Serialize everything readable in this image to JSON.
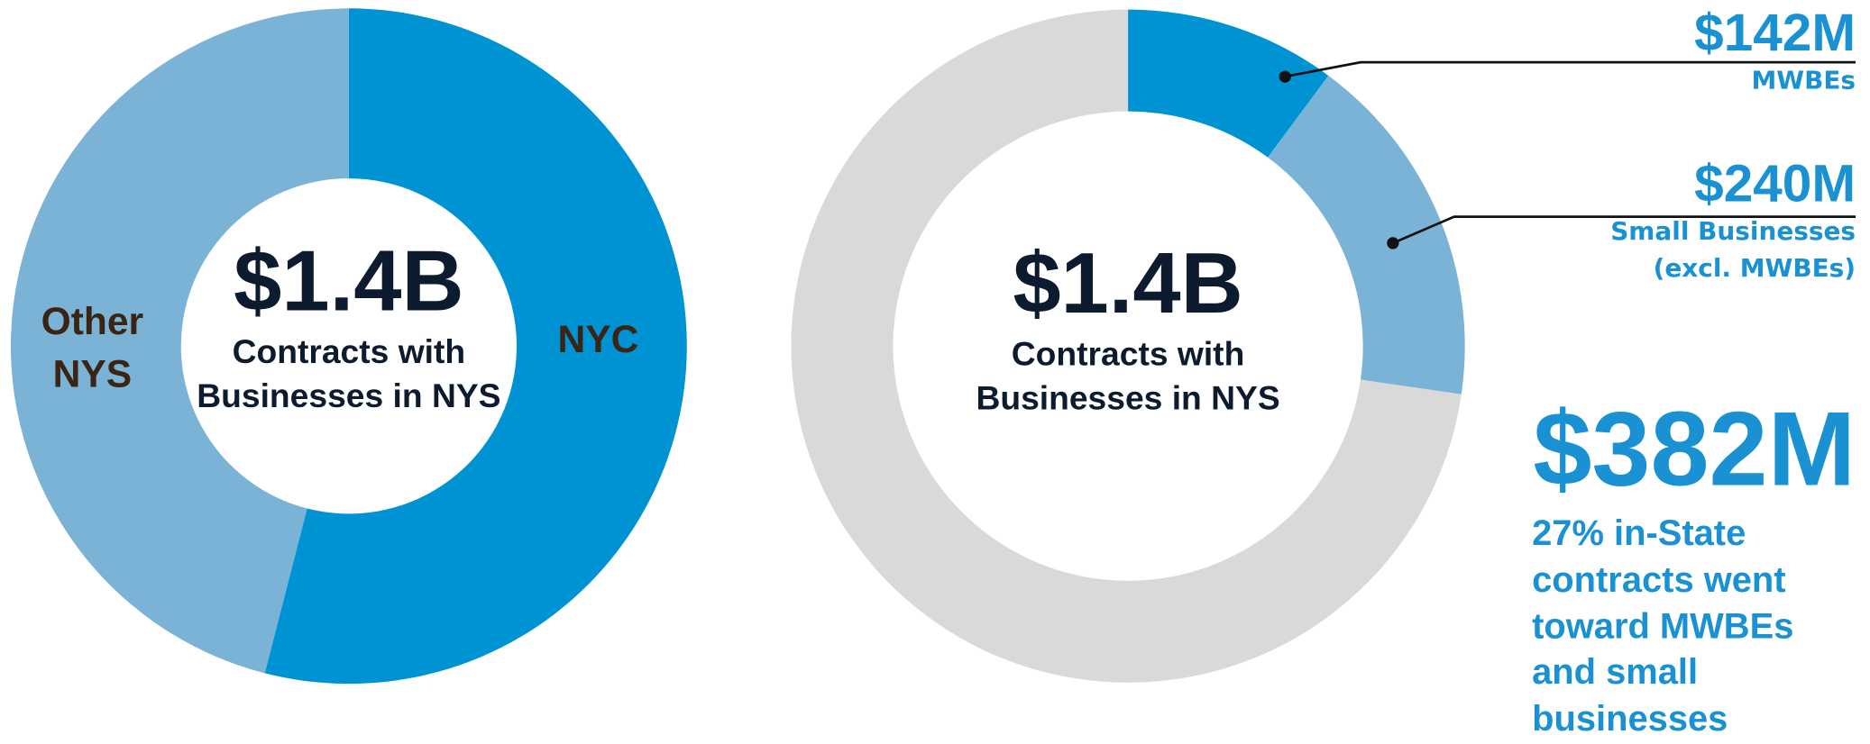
{
  "chart_data": [
    {
      "type": "donut",
      "categories": [
        "NYC",
        "Other NYS"
      ],
      "values": [
        54,
        46
      ],
      "colors": [
        "#0093d3",
        "#7ab3d6"
      ],
      "center_value": "$1.4B",
      "center_label": "Contracts with Businesses in NYS"
    },
    {
      "type": "donut",
      "categories": [
        "MWBEs",
        "Small Businesses (excl. MWBEs)",
        null
      ],
      "values": [
        142,
        240,
        1018
      ],
      "value_labels": [
        "$142M",
        "$240M",
        null
      ],
      "colors": [
        "#0093d3",
        "#7ab3d6",
        "#d9d9d9"
      ],
      "center_value": "$1.4B",
      "center_label": "Contracts with Businesses in NYS",
      "annotation_value": "$382M",
      "annotation": "27% in-State contracts went toward MWBEs and small businesses"
    }
  ]
}
